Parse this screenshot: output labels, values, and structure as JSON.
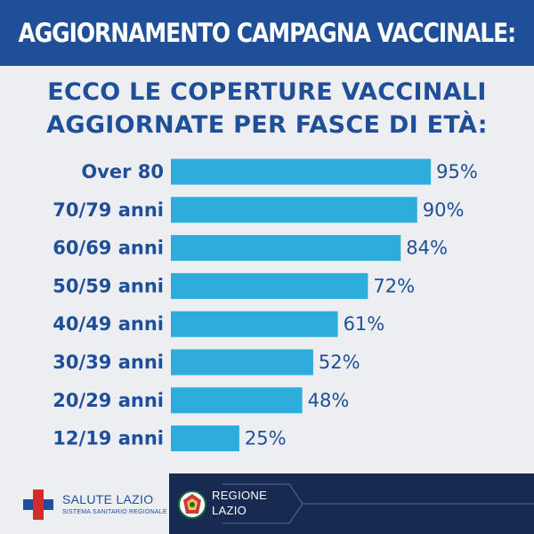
{
  "header": {
    "banner_title": "AGGIORNAMENTO CAMPAGNA VACCINALE:"
  },
  "headline": {
    "line1": "ECCO LE COPERTURE VACCINALI",
    "line2": "AGGIORNATE PER FASCE DI ETÀ:"
  },
  "chart_data": {
    "type": "bar",
    "orientation": "horizontal",
    "categories": [
      "Over 80",
      "70/79 anni",
      "60/69 anni",
      "50/59 anni",
      "40/49 anni",
      "30/39 anni",
      "20/29 anni",
      "12/19 anni"
    ],
    "values": [
      95,
      90,
      84,
      72,
      61,
      52,
      48,
      25
    ],
    "value_labels": [
      "95%",
      "90%",
      "84%",
      "72%",
      "61%",
      "52%",
      "48%",
      "25%"
    ],
    "xlim": [
      0,
      100
    ],
    "grid": false,
    "bar_color": "#2eacdc"
  },
  "footer": {
    "left_org": "SALUTE LAZIO",
    "left_sub": "SISTEMA SANITARIO REGIONALE",
    "right_org_line1": "REGIONE",
    "right_org_line2": "LAZIO"
  },
  "colors": {
    "brand_blue": "#1f4f98",
    "dark_navy": "#162a52",
    "bar": "#2eacdc",
    "background": "#eceef1"
  }
}
